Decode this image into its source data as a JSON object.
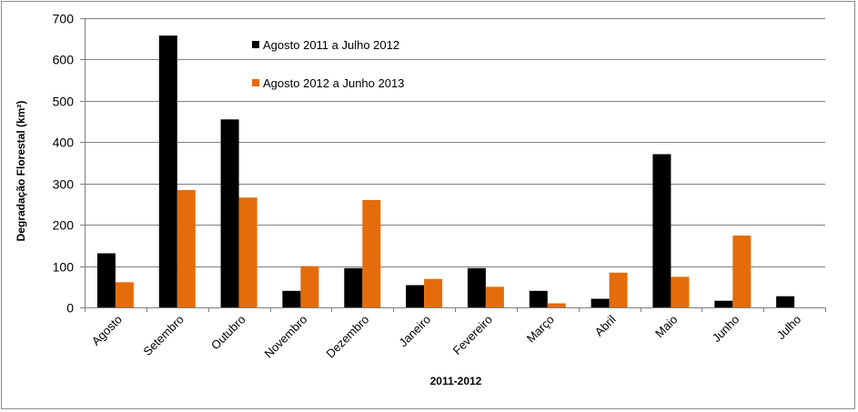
{
  "chart_data": {
    "type": "bar",
    "categories": [
      "Agosto",
      "Setembro",
      "Outubro",
      "Novembro",
      "Dezembro",
      "Janeiro",
      "Fevereiro",
      "Março",
      "Abril",
      "Maio",
      "Junho",
      "Julho"
    ],
    "series": [
      {
        "name": "Agosto 2011 a Julho 2012",
        "color": "#000000",
        "values": [
          131,
          658,
          455,
          40,
          95,
          54,
          95,
          40,
          21,
          371,
          16,
          27
        ]
      },
      {
        "name": "Agosto 2012 a Junho 2013",
        "color": "#e46c0a",
        "values": [
          61,
          284,
          266,
          100,
          260,
          69,
          50,
          10,
          84,
          74,
          174,
          null
        ]
      }
    ],
    "xlabel": "2011-2012",
    "ylabel": "Degradação Florestal (km²)",
    "ylim": [
      0,
      700
    ],
    "yticks": [
      0,
      100,
      200,
      300,
      400,
      500,
      600,
      700
    ],
    "grid": true,
    "legend_position": "top-center"
  }
}
